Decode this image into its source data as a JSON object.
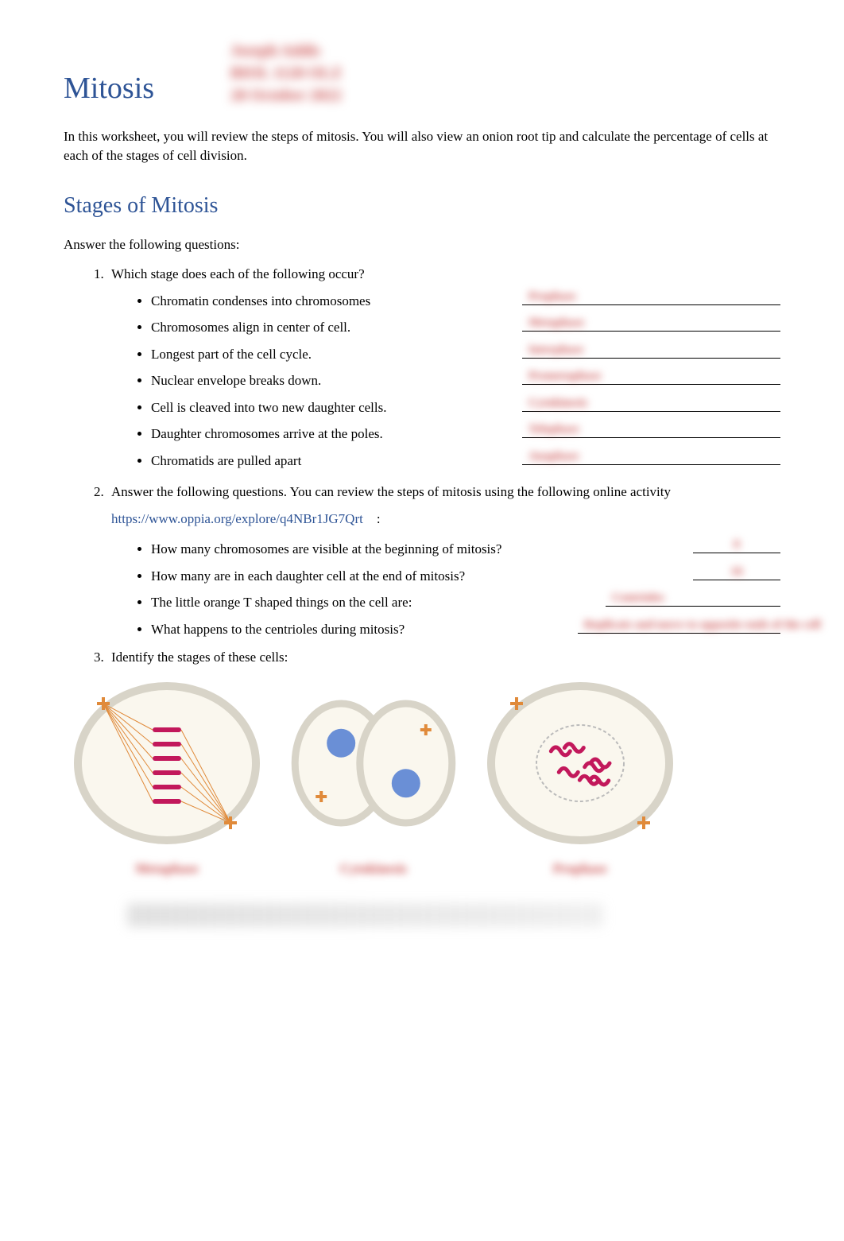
{
  "header": {
    "blurred_line1": "Joseph Addis",
    "blurred_line2": "BIOL 1120 OLZ",
    "blurred_line3": "28 October 2022",
    "title": "Mitosis"
  },
  "intro": "In this worksheet, you will review the steps of mitosis. You will also view an onion root tip and calculate the percentage of cells at each of the stages of cell division.",
  "section_title": "Stages of Mitosis",
  "instruction": "Answer the following questions:",
  "q1": {
    "prompt": "Which stage does each of the following occur?",
    "items": [
      {
        "text": "Chromatin condenses into chromosomes",
        "answer": "Prophase"
      },
      {
        "text": "Chromosomes align in center of cell.",
        "answer": "Metaphase"
      },
      {
        "text": "Longest part of the cell cycle.",
        "answer": "Interphase"
      },
      {
        "text": "Nuclear envelope breaks down.",
        "answer": "Prometaphase"
      },
      {
        "text": "Cell is cleaved into two new daughter cells.",
        "answer": "Cytokinesis"
      },
      {
        "text": "Daughter chromosomes arrive at the poles.",
        "answer": "Telophase"
      },
      {
        "text": "Chromatids are pulled apart",
        "answer": "Anaphase"
      }
    ]
  },
  "q2": {
    "prompt_a": "Answer the following questions. You can review the steps of mitosis using the following",
    "prompt_b": "online activity",
    "link_text": "https://www.oppia.org/explore/q4NBr1JG7Qrt",
    "colon": ":",
    "items": [
      {
        "text": "How many chromosomes are visible at the beginning of mitosis?",
        "answer": "8",
        "blank": "med"
      },
      {
        "text": "How many are in each daughter cell at the end of mitosis?",
        "answer": "16",
        "blank": "med"
      },
      {
        "text": "The little orange T shaped things on the cell are:",
        "answer": "Centrioles",
        "blank": "med2"
      },
      {
        "text": "What happens to the centrioles during mitosis?",
        "answer": "Replicate and move to opposite ends of the cell",
        "blank": "long"
      }
    ]
  },
  "q3": {
    "prompt": "Identify the stages of these cells:",
    "cells": [
      {
        "label": "Metaphase"
      },
      {
        "label": "Cytokinesis"
      },
      {
        "label": "Prophase"
      }
    ]
  },
  "colors": {
    "heading": "#2e5496",
    "answer": "#c94a4a",
    "text": "#000000",
    "cell_fill": "#faf7ee",
    "cell_border": "#d8d4c8",
    "chromatin": "#c2185b",
    "centriole": "#e08a3a"
  }
}
